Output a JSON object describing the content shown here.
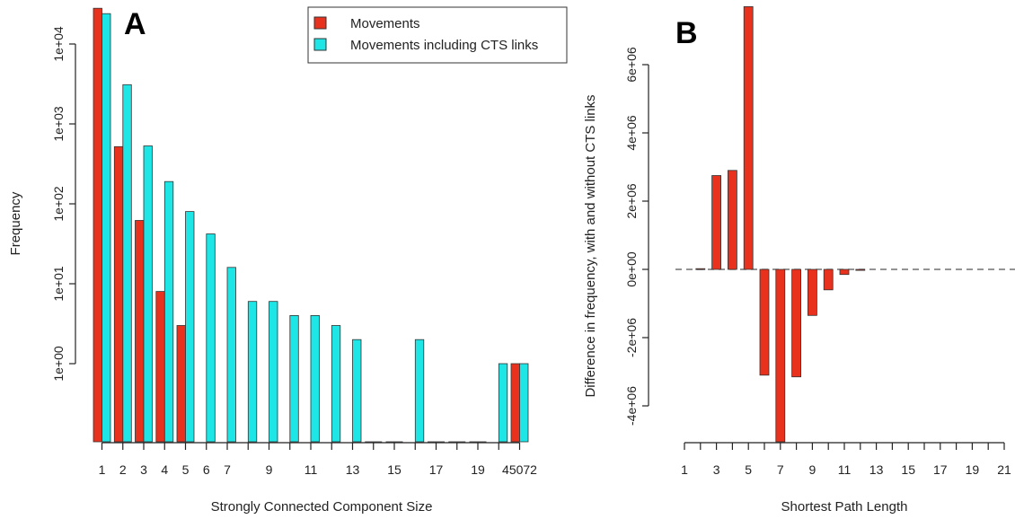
{
  "panels": {
    "a_label": "A",
    "b_label": "B"
  },
  "colors": {
    "movements": "#e8321e",
    "movements_cts": "#1ee6e6",
    "stroke": "#333333"
  },
  "chart_data": [
    {
      "id": "A",
      "type": "bar",
      "title": "",
      "xlabel": "Strongly Connected Component Size",
      "ylabel": "Frequency",
      "y_scale": "log",
      "y_ticks": [
        "1e+00",
        "1e+01",
        "1e+02",
        "1e+03",
        "1e+04"
      ],
      "categories": [
        "1",
        "2",
        "3",
        "4",
        "5",
        "6",
        "7",
        "8",
        "9",
        "10",
        "11",
        "12",
        "13",
        "14",
        "15",
        "16",
        "17",
        "18",
        "19",
        "20",
        "45072"
      ],
      "x_tick_labels": [
        "1",
        "2",
        "3",
        "4",
        "5",
        "6",
        "7",
        "9",
        "11",
        "13",
        "15",
        "17",
        "19",
        "45072"
      ],
      "legend_position": "top-right",
      "series": [
        {
          "name": "Movements",
          "values": [
            28000,
            520,
            62,
            8,
            3,
            null,
            null,
            null,
            null,
            null,
            null,
            null,
            null,
            null,
            null,
            null,
            null,
            null,
            null,
            null,
            1
          ]
        },
        {
          "name": "Movements including CTS links",
          "values": [
            24000,
            3100,
            530,
            190,
            80,
            42,
            16,
            6,
            6,
            4,
            4,
            3,
            2,
            null,
            null,
            2,
            null,
            null,
            null,
            1,
            1
          ]
        }
      ]
    },
    {
      "id": "B",
      "type": "bar",
      "title": "",
      "xlabel": "Shortest Path Length",
      "ylabel": "Difference in frequency, with and without CTS links",
      "ylim": [
        -5000000,
        8000000
      ],
      "y_ticks": [
        "-4e+06",
        "-2e+06",
        "0e+00",
        "2e+06",
        "4e+06",
        "6e+06"
      ],
      "x_tick_labels": [
        "1",
        "3",
        "5",
        "7",
        "9",
        "11",
        "13",
        "15",
        "17",
        "19",
        "21"
      ],
      "x": [
        2,
        3,
        4,
        5,
        6,
        7,
        8,
        9,
        10,
        11,
        12
      ],
      "values": [
        20000,
        2750000,
        2900000,
        7700000,
        -3100000,
        -5100000,
        -3150000,
        -1350000,
        -600000,
        -150000,
        -30000
      ]
    }
  ]
}
